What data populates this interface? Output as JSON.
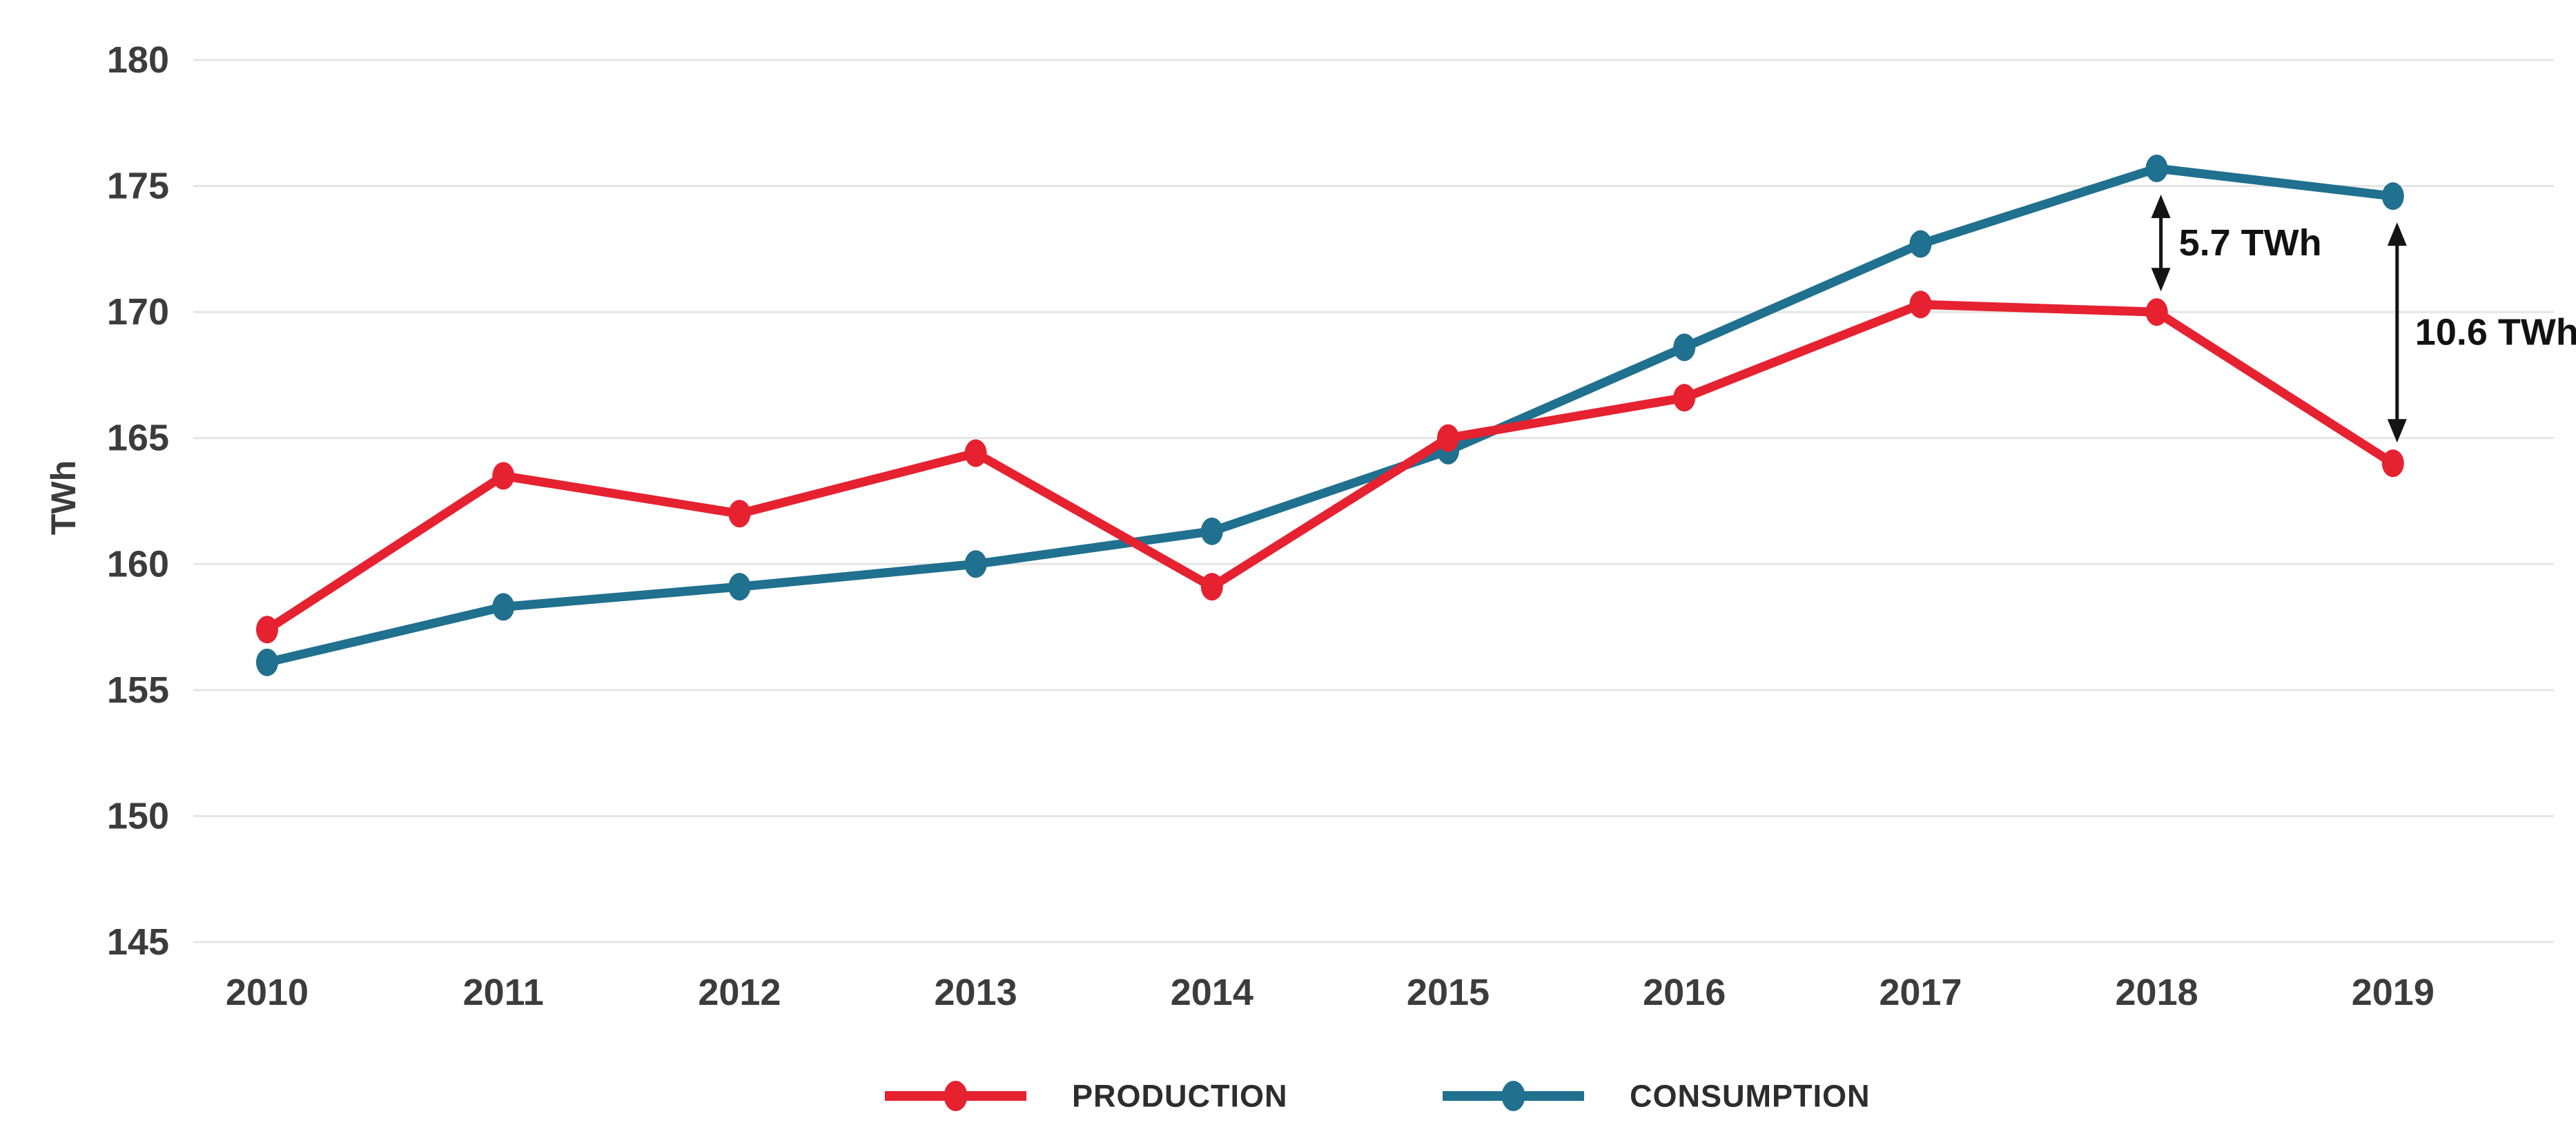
{
  "chart_data": {
    "type": "line",
    "title": "",
    "xlabel": "",
    "ylabel": "TWh",
    "x": [
      "2010",
      "2011",
      "2012",
      "2013",
      "2014",
      "2015",
      "2016",
      "2017",
      "2018",
      "2019"
    ],
    "ylim": [
      145,
      180
    ],
    "yticks": [
      145,
      150,
      155,
      160,
      165,
      170,
      175,
      180
    ],
    "grid": "horizontal",
    "legend_position": "bottom-center",
    "series": [
      {
        "name": "PRODUCTION",
        "color": "#e62130",
        "values": [
          157.4,
          163.5,
          162.0,
          164.4,
          159.1,
          165.0,
          166.6,
          170.3,
          170.0,
          164.0
        ]
      },
      {
        "name": "CONSUMPTION",
        "color": "#20708f",
        "values": [
          156.1,
          158.3,
          159.1,
          160.0,
          161.3,
          164.5,
          168.6,
          172.7,
          175.7,
          174.6
        ]
      }
    ],
    "annotations": [
      {
        "x": "2018",
        "label": "5.7 TWh",
        "from_series": "CONSUMPTION",
        "to_series": "PRODUCTION"
      },
      {
        "x": "2019",
        "label": "10.6 TWh",
        "from_series": "CONSUMPTION",
        "to_series": "PRODUCTION"
      }
    ]
  },
  "legend": {
    "items": [
      {
        "label": "PRODUCTION",
        "color": "#e62130"
      },
      {
        "label": "CONSUMPTION",
        "color": "#20708f"
      }
    ]
  },
  "colors": {
    "background": "#ffffff",
    "grid": "#e5e5e5",
    "axis_text": "#3c3c3c",
    "annotation": "#141414",
    "production": "#e62130",
    "consumption": "#20708f"
  }
}
